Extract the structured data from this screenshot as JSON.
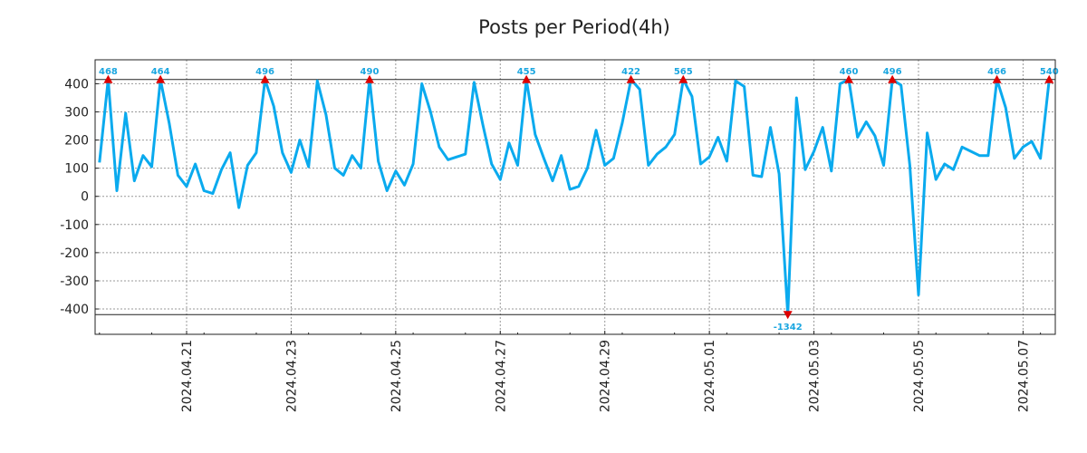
{
  "chart_data": {
    "type": "line",
    "title": "Posts per Period(4h)",
    "xlabel": "",
    "ylabel": "",
    "ylim": [
      -490,
      485
    ],
    "yticks": [
      400,
      300,
      200,
      100,
      0,
      -100,
      -200,
      -300,
      -400
    ],
    "ytick_labels": [
      "400",
      "300",
      "200",
      "100",
      "0",
      "-100",
      "-200",
      "-300",
      "-400"
    ],
    "x_start": "2024-04-19 16:00",
    "x_step_hours": 4,
    "x_range_index": [
      -0.5,
      109.7
    ],
    "xticks": [
      {
        "label": "2024.04.21",
        "index": 10
      },
      {
        "label": "2024.04.23",
        "index": 22
      },
      {
        "label": "2024.04.25",
        "index": 34
      },
      {
        "label": "2024.04.27",
        "index": 46
      },
      {
        "label": "2024.04.29",
        "index": 58
      },
      {
        "label": "2024.05.01",
        "index": 70
      },
      {
        "label": "2024.05.03",
        "index": 82
      },
      {
        "label": "2024.05.05",
        "index": 94
      },
      {
        "label": "2024.05.07",
        "index": 106
      }
    ],
    "clip": {
      "upper": 415,
      "lower": -420
    },
    "series": [
      {
        "name": "Posts per Period(4h)",
        "color": "#0aaaee",
        "values": [
          120,
          468,
          20,
          295,
          55,
          145,
          105,
          464,
          260,
          75,
          35,
          115,
          20,
          10,
          95,
          155,
          -40,
          110,
          155,
          496,
          320,
          155,
          85,
          200,
          105,
          410,
          290,
          100,
          75,
          145,
          100,
          490,
          125,
          20,
          90,
          40,
          115,
          400,
          300,
          175,
          130,
          140,
          150,
          405,
          255,
          115,
          60,
          190,
          110,
          455,
          220,
          135,
          55,
          145,
          25,
          35,
          100,
          235,
          110,
          135,
          260,
          422,
          380,
          110,
          150,
          175,
          220,
          565,
          355,
          115,
          140,
          210,
          125,
          410,
          390,
          75,
          70,
          245,
          80,
          -1342,
          350,
          95,
          160,
          245,
          90,
          400,
          460,
          210,
          265,
          215,
          110,
          496,
          395,
          110,
          -350,
          225,
          60,
          115,
          95,
          175,
          160,
          145,
          145,
          466,
          315,
          135,
          175,
          195,
          135,
          540
        ]
      }
    ],
    "annotations": [
      {
        "index": 1,
        "label": "468",
        "marker": "up"
      },
      {
        "index": 7,
        "label": "464",
        "marker": "up"
      },
      {
        "index": 19,
        "label": "496",
        "marker": "up"
      },
      {
        "index": 31,
        "label": "490",
        "marker": "up"
      },
      {
        "index": 49,
        "label": "455",
        "marker": "up"
      },
      {
        "index": 61,
        "label": "422",
        "marker": "up"
      },
      {
        "index": 67,
        "label": "565",
        "marker": "up"
      },
      {
        "index": 79,
        "label": "-1342",
        "marker": "down"
      },
      {
        "index": 86,
        "label": "460",
        "marker": "up"
      },
      {
        "index": 91,
        "label": "496",
        "marker": "up"
      },
      {
        "index": 103,
        "label": "466",
        "marker": "up"
      },
      {
        "index": 109,
        "label": "540",
        "marker": "up"
      }
    ],
    "marker_color": "#dd0000",
    "grid": true
  }
}
